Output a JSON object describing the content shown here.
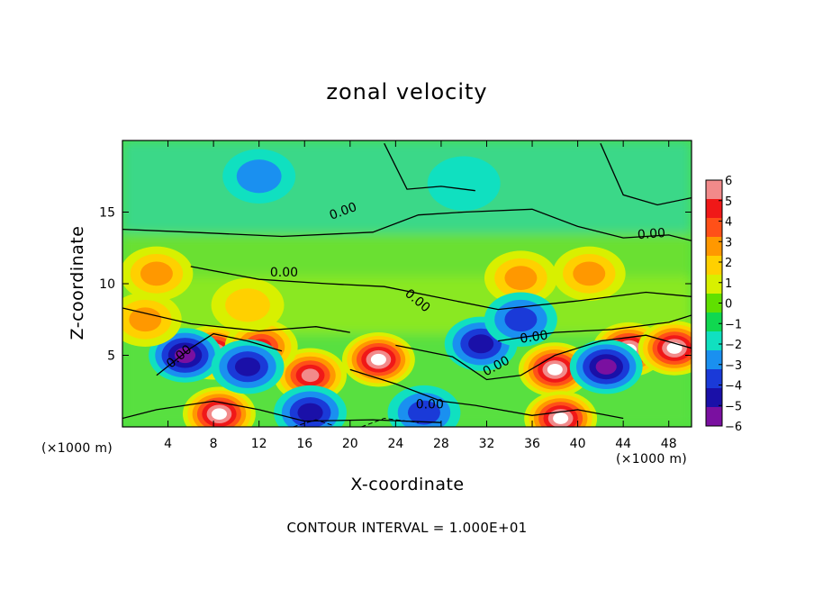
{
  "chart_data": {
    "type": "heatmap",
    "title": "zonal velocity",
    "xlabel": "X-coordinate",
    "ylabel": "Z-coordinate",
    "x_unit": "(×1000 m)",
    "x_unit_right": "(×1000 m)",
    "xlim": [
      0,
      50
    ],
    "ylim": [
      0,
      20
    ],
    "x_ticks": [
      4,
      8,
      12,
      16,
      20,
      24,
      28,
      32,
      36,
      40,
      44,
      48
    ],
    "y_ticks": [
      5,
      10,
      15
    ],
    "colorbar": {
      "ticks": [
        6,
        5,
        4,
        3,
        2,
        1,
        0,
        -1,
        -2,
        -3,
        -4,
        -5,
        -6
      ],
      "labels": [
        "6",
        "5",
        "4",
        "3",
        "2",
        "1",
        "0",
        "−1",
        "−2",
        "−3",
        "−4",
        "−5",
        "−6"
      ],
      "colors": [
        "#f28a8a",
        "#f01818",
        "#ff5018",
        "#ff9800",
        "#ffd000",
        "#d8f000",
        "#60e000",
        "#10d850",
        "#10e0c0",
        "#1a90f0",
        "#1a3ad8",
        "#1a10a8",
        "#7a10a0"
      ]
    },
    "contour_interval": "CONTOUR INTERVAL = 1.000E+01",
    "contour_labels": [
      "0.00",
      "0.00",
      "0.00",
      "0.00",
      "0.00",
      "0.00",
      "0.00",
      "0.00",
      "0.00"
    ],
    "blobs": [
      {
        "x": 8,
        "z": 5.2,
        "v": 7
      },
      {
        "x": 8.5,
        "z": 0.9,
        "v": 7
      },
      {
        "x": 22.5,
        "z": 4.7,
        "v": 7
      },
      {
        "x": 38,
        "z": 4.0,
        "v": 7
      },
      {
        "x": 38.5,
        "z": 0.6,
        "v": 7
      },
      {
        "x": 44.5,
        "z": 5.4,
        "v": 7
      },
      {
        "x": 48.5,
        "z": 5.5,
        "v": 7
      },
      {
        "x": 16.5,
        "z": 3.6,
        "v": 6
      },
      {
        "x": 12.2,
        "z": 5.6,
        "v": 5
      },
      {
        "x": 5.5,
        "z": 5.0,
        "v": -5
      },
      {
        "x": 11.0,
        "z": 4.2,
        "v": -4
      },
      {
        "x": 16.5,
        "z": 1.0,
        "v": -4
      },
      {
        "x": 26.5,
        "z": 1.0,
        "v": -3
      },
      {
        "x": 31.5,
        "z": 5.8,
        "v": -4
      },
      {
        "x": 42.5,
        "z": 4.2,
        "v": -5
      },
      {
        "x": 2,
        "z": 7.5,
        "v": 2.5
      },
      {
        "x": 11,
        "z": 8.5,
        "v": 2
      },
      {
        "x": 3,
        "z": 10.7,
        "v": 3
      },
      {
        "x": 35,
        "z": 10.4,
        "v": 3
      },
      {
        "x": 41,
        "z": 10.7,
        "v": 3
      },
      {
        "x": 12,
        "z": 17.5,
        "v": -1.5
      },
      {
        "x": 30,
        "z": 17,
        "v": -1
      },
      {
        "x": 35,
        "z": 7.5,
        "v": -2.5
      }
    ]
  }
}
